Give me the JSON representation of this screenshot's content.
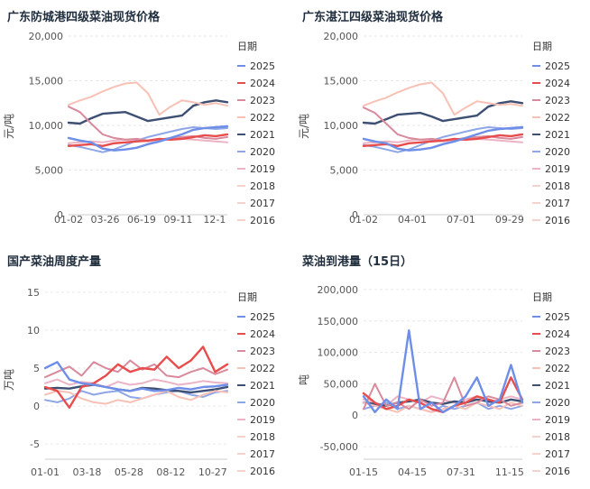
{
  "charts": [
    {
      "type": "line",
      "title": "广东防城港四级菜油现货价格",
      "ylabel": "元/吨",
      "ylim": [
        0,
        20000
      ],
      "yticks": [
        "0",
        "5,000",
        "10,000",
        "15,000",
        "20,000"
      ],
      "yticks_values": [
        0,
        5000,
        10000,
        15000,
        20000
      ],
      "xticks": [
        "01-02",
        "03-26",
        "06-19",
        "09-11",
        "12-1"
      ],
      "legend_title": "日期",
      "series": [
        {
          "name": "2025",
          "color": "#6e8ee8",
          "values": [
            8600,
            8300,
            8100,
            7400,
            7200,
            7300,
            7500,
            7900,
            8200,
            8600,
            9000,
            9500,
            9700,
            9800,
            9900
          ]
        },
        {
          "name": "2024",
          "color": "#e84d4d",
          "values": [
            7700,
            7800,
            7900,
            7700,
            8000,
            8100,
            8200,
            8300,
            8500,
            8400,
            8500,
            8700,
            8900,
            8800,
            9000
          ]
        },
        {
          "name": "2023",
          "color": "#d98a9c",
          "values": [
            12100,
            11500,
            10200,
            9000,
            8600,
            8400,
            8500,
            8300,
            8400,
            8600,
            8700,
            8800,
            8600,
            8500,
            8700
          ]
        },
        {
          "name": "2022",
          "color": "#f7c1b5",
          "values": [
            12300,
            12800,
            13200,
            13800,
            14300,
            14700,
            14800,
            13600,
            11200,
            12100,
            12800,
            12600,
            12300,
            12500,
            12200
          ]
        },
        {
          "name": "2021",
          "color": "#3d4f73",
          "values": [
            10300,
            10200,
            10800,
            11300,
            11400,
            11500,
            11000,
            10500,
            10700,
            10900,
            11100,
            12200,
            12600,
            12800,
            12600
          ]
        },
        {
          "name": "2020",
          "color": "#8fa6e6",
          "values": [
            7800,
            7600,
            7300,
            7000,
            7300,
            7800,
            8300,
            8700,
            9000,
            9300,
            9600,
            9800,
            9700,
            9600,
            9700
          ]
        },
        {
          "name": "2019",
          "color": "#ecb3c4",
          "values": [
            8000,
            8100,
            8200,
            8100,
            8300,
            8400,
            8300,
            8200,
            8300,
            8400,
            8500,
            8400,
            8300,
            8200,
            8100
          ]
        },
        {
          "name": "2018",
          "color": "#f3d3cb",
          "values": []
        },
        {
          "name": "2017",
          "color": "#f3d3cb",
          "values": []
        },
        {
          "name": "2016",
          "color": "#f3d3cb",
          "values": []
        }
      ]
    },
    {
      "type": "line",
      "title": "广东湛江四级菜油现货价格",
      "ylabel": "元/吨",
      "ylim": [
        0,
        20000
      ],
      "yticks": [
        "0",
        "5,000",
        "10,000",
        "15,000",
        "20,000"
      ],
      "yticks_values": [
        0,
        5000,
        10000,
        15000,
        20000
      ],
      "xticks": [
        "01-02",
        "04-01",
        "07-01",
        "09-29"
      ],
      "legend_title": "日期",
      "series": [
        {
          "name": "2025",
          "color": "#6e8ee8",
          "values": [
            8500,
            8200,
            8000,
            7400,
            7200,
            7300,
            7500,
            7900,
            8200,
            8600,
            9000,
            9400,
            9600,
            9700,
            9800
          ]
        },
        {
          "name": "2024",
          "color": "#e84d4d",
          "values": [
            7700,
            7800,
            7900,
            7700,
            8000,
            8100,
            8200,
            8300,
            8500,
            8400,
            8500,
            8700,
            8900,
            8800,
            9000
          ]
        },
        {
          "name": "2023",
          "color": "#d98a9c",
          "values": [
            12000,
            11400,
            10200,
            9000,
            8600,
            8400,
            8500,
            8300,
            8400,
            8600,
            8700,
            8800,
            8600,
            8500,
            8700
          ]
        },
        {
          "name": "2022",
          "color": "#f7c1b5",
          "values": [
            12200,
            12700,
            13100,
            13700,
            14200,
            14600,
            14800,
            13600,
            11200,
            12000,
            12700,
            12500,
            12300,
            12400,
            12200
          ]
        },
        {
          "name": "2021",
          "color": "#3d4f73",
          "values": [
            10300,
            10200,
            10700,
            11200,
            11300,
            11400,
            11000,
            10500,
            10700,
            10900,
            11100,
            12100,
            12500,
            12700,
            12500
          ]
        },
        {
          "name": "2020",
          "color": "#8fa6e6",
          "values": [
            7800,
            7600,
            7300,
            7000,
            7300,
            7800,
            8300,
            8700,
            9000,
            9300,
            9600,
            9800,
            9700,
            9600,
            9700
          ]
        },
        {
          "name": "2019",
          "color": "#ecb3c4",
          "values": [
            8000,
            8100,
            8200,
            8100,
            8300,
            8400,
            8300,
            8200,
            8300,
            8400,
            8500,
            8400,
            8300,
            8200,
            8100
          ]
        },
        {
          "name": "2018",
          "color": "#f3d3cb",
          "values": []
        },
        {
          "name": "2017",
          "color": "#f3d3cb",
          "values": []
        },
        {
          "name": "2016",
          "color": "#f3d3cb",
          "values": []
        }
      ]
    },
    {
      "type": "line",
      "title": "国产菜油周度产量",
      "ylabel": "万吨",
      "ylim": [
        -7,
        17
      ],
      "yticks": [
        "-5",
        "0",
        "5",
        "10",
        "15"
      ],
      "yticks_values": [
        -5,
        0,
        5,
        10,
        15
      ],
      "xticks": [
        "01-01",
        "03-18",
        "05-28",
        "08-12",
        "10-27"
      ],
      "legend_title": "日期",
      "series": [
        {
          "name": "2025",
          "color": "#6e8ee8",
          "values": [
            5.0,
            5.8,
            3.5,
            3.0,
            2.8,
            2.5,
            2.2,
            2.0,
            2.3,
            2.0,
            2.1,
            2.4,
            2.2,
            2.5,
            2.6,
            2.8
          ]
        },
        {
          "name": "2024",
          "color": "#e84d4d",
          "values": [
            2.5,
            2.0,
            -0.2,
            2.5,
            3.0,
            4.0,
            5.5,
            4.5,
            5.0,
            4.8,
            6.5,
            5.0,
            6.0,
            7.8,
            4.5,
            5.5
          ]
        },
        {
          "name": "2023",
          "color": "#d98a9c",
          "values": [
            3.8,
            4.5,
            5.2,
            4.0,
            5.8,
            5.0,
            4.5,
            6.0,
            4.8,
            5.5,
            4.0,
            3.8,
            4.5,
            5.0,
            4.2,
            4.8
          ]
        },
        {
          "name": "2022",
          "color": "#f7c1b5",
          "values": [
            1.5,
            2.0,
            1.8,
            1.0,
            0.5,
            0.3,
            0.8,
            0.5,
            1.0,
            1.5,
            2.0,
            1.2,
            0.8,
            1.5,
            2.0,
            1.8
          ]
        },
        {
          "name": "2021",
          "color": "#3d4f73",
          "values": [
            2.3,
            2.4,
            2.3,
            2.6,
            2.8,
            2.5,
            2.2,
            2.0,
            2.4,
            2.3,
            2.1,
            2.0,
            1.8,
            2.0,
            2.2,
            2.5
          ]
        },
        {
          "name": "2020",
          "color": "#8fa6e6",
          "values": [
            0.8,
            0.5,
            1.0,
            2.0,
            1.5,
            1.8,
            2.0,
            1.2,
            1.0,
            1.5,
            1.8,
            2.0,
            1.5,
            1.2,
            1.8,
            2.0
          ]
        },
        {
          "name": "2019",
          "color": "#ecb3c4",
          "values": [
            3.0,
            3.5,
            2.8,
            3.2,
            3.0,
            2.5,
            3.2,
            2.8,
            3.0,
            3.5,
            3.2,
            2.8,
            3.0,
            3.3,
            3.1,
            3.0
          ]
        },
        {
          "name": "2018",
          "color": "#f3d3cb",
          "values": []
        },
        {
          "name": "2017",
          "color": "#f3d3cb",
          "values": []
        },
        {
          "name": "2016",
          "color": "#f3d3cb",
          "values": []
        }
      ]
    },
    {
      "type": "line",
      "title": "菜油到港量（15日）",
      "ylabel": "吨",
      "ylim": [
        -70000,
        220000
      ],
      "yticks": [
        "-50,000",
        "0",
        "50,000",
        "100,000",
        "150,000",
        "200,000"
      ],
      "yticks_values": [
        -50000,
        0,
        50000,
        100000,
        150000,
        200000
      ],
      "xticks": [
        "01-15",
        "04-15",
        "07-31",
        "11-15"
      ],
      "legend_title": "日期",
      "series": [
        {
          "name": "2025",
          "color": "#6e8ee8",
          "values": [
            30000,
            5000,
            25000,
            10000,
            135000,
            10000,
            20000,
            5000,
            15000,
            30000,
            60000,
            15000,
            25000,
            80000,
            20000
          ]
        },
        {
          "name": "2024",
          "color": "#e84d4d",
          "values": [
            35000,
            20000,
            10000,
            15000,
            25000,
            20000,
            10000,
            5000,
            15000,
            20000,
            30000,
            25000,
            20000,
            60000,
            25000
          ]
        },
        {
          "name": "2023",
          "color": "#d98a9c",
          "values": [
            10000,
            50000,
            15000,
            20000,
            10000,
            25000,
            15000,
            20000,
            60000,
            15000,
            20000,
            30000,
            25000,
            15000,
            20000
          ]
        },
        {
          "name": "2022",
          "color": "#f7c1b5",
          "values": [
            20000,
            15000,
            10000,
            5000,
            15000,
            10000,
            5000,
            10000,
            15000,
            10000,
            20000,
            15000,
            10000,
            20000,
            15000
          ]
        },
        {
          "name": "2021",
          "color": "#3d4f73",
          "values": [
            20000,
            18000,
            15000,
            20000,
            22000,
            25000,
            20000,
            18000,
            22000,
            20000,
            25000,
            22000,
            20000,
            25000,
            22000
          ]
        },
        {
          "name": "2020",
          "color": "#8fa6e6",
          "values": [
            10000,
            15000,
            20000,
            10000,
            15000,
            10000,
            5000,
            15000,
            10000,
            15000,
            20000,
            10000,
            15000,
            10000,
            15000
          ]
        },
        {
          "name": "2019",
          "color": "#ecb3c4",
          "values": [
            25000,
            20000,
            15000,
            30000,
            25000,
            20000,
            30000,
            25000,
            20000,
            25000,
            30000,
            20000,
            25000,
            30000,
            25000
          ]
        },
        {
          "name": "2018",
          "color": "#f3d3cb",
          "values": []
        },
        {
          "name": "2017",
          "color": "#f3d3cb",
          "values": []
        },
        {
          "name": "2016",
          "color": "#f3d3cb",
          "values": []
        }
      ]
    }
  ]
}
